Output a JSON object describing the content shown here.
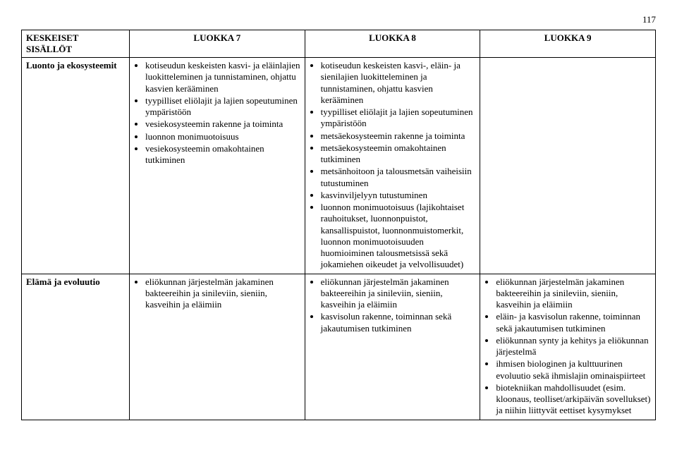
{
  "page_number": "117",
  "columns": {
    "rowheader": "KESKEISET SISÄLLÖT",
    "c1": "LUOKKA 7",
    "c2": "LUOKKA 8",
    "c3": "LUOKKA 9"
  },
  "rows": [
    {
      "header": "Luonto ja ekosysteemit",
      "c1": [
        "kotiseudun keskeisten kasvi- ja eläinlajien luokitteleminen ja tunnistaminen, ohjattu kasvien kerääminen",
        "tyypilliset eliölajit ja lajien sopeutuminen ympäristöön",
        "vesiekosysteemin rakenne ja toiminta",
        "luonnon monimuotoisuus",
        "vesiekosysteemin omakohtainen tutkiminen"
      ],
      "c2": [
        "kotiseudun keskeisten kasvi-, eläin- ja sienilajien luokitteleminen ja tunnistaminen, ohjattu kasvien kerääminen",
        "tyypilliset eliölajit ja lajien sopeutuminen ympäristöön",
        "metsäekosysteemin rakenne ja toiminta",
        "metsäekosysteemin omakohtainen tutkiminen",
        "metsänhoitoon ja talousmetsän vaiheisiin tutustuminen",
        "kasvinviljelyyn tutustuminen",
        "luonnon monimuotoisuus (lajikohtaiset rauhoitukset, luonnonpuistot, kansallispuistot, luonnonmuistomerkit, luonnon monimuotoisuuden huomioiminen talousmetsissä sekä jokamiehen oikeudet ja velvollisuudet)"
      ],
      "c3": []
    },
    {
      "header": "Elämä ja evoluutio",
      "c1": [
        "eliökunnan järjestelmän jakaminen bakteereihin ja sinileviin, sieniin, kasveihin ja eläimiin"
      ],
      "c2": [
        "eliökunnan järjestelmän jakaminen bakteereihin ja sinileviin, sieniin, kasveihin ja eläimiin",
        "kasvisolun rakenne, toiminnan sekä jakautumisen tutkiminen"
      ],
      "c3": [
        "eliökunnan järjestelmän jakaminen bakteereihin ja sinileviin, sieniin, kasveihin ja eläimiin",
        "eläin- ja kasvisolun rakenne, toiminnan sekä jakautumisen tutkiminen",
        "eliökunnan synty ja kehitys ja eliökunnan järjestelmä",
        "ihmisen biologinen ja kulttuurinen evoluutio sekä ihmislajin ominaispiirteet",
        "biotekniikan mahdollisuudet (esim. kloonaus, teolliset/arkipäivän sovellukset) ja niihin liittyvät eettiset kysymykset"
      ]
    }
  ]
}
